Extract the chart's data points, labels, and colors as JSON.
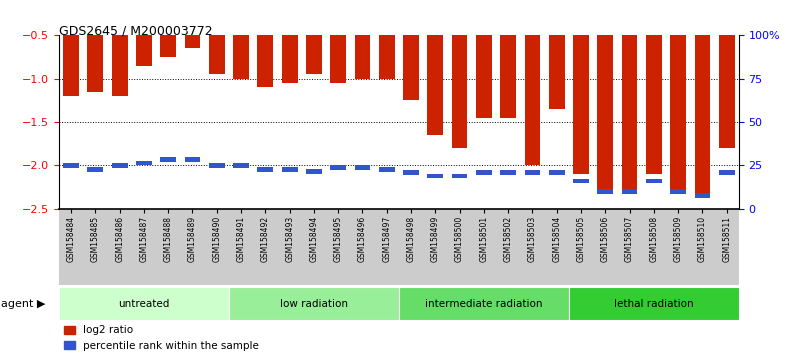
{
  "title": "GDS2645 / M200003772",
  "samples": [
    "GSM158484",
    "GSM158485",
    "GSM158486",
    "GSM158487",
    "GSM158488",
    "GSM158489",
    "GSM158490",
    "GSM158491",
    "GSM158492",
    "GSM158493",
    "GSM158494",
    "GSM158495",
    "GSM158496",
    "GSM158497",
    "GSM158498",
    "GSM158499",
    "GSM158500",
    "GSM158501",
    "GSM158502",
    "GSM158503",
    "GSM158504",
    "GSM158505",
    "GSM158506",
    "GSM158507",
    "GSM158508",
    "GSM158509",
    "GSM158510",
    "GSM158511"
  ],
  "log2_ratio": [
    -1.2,
    -1.15,
    -1.2,
    -0.85,
    -0.75,
    -0.65,
    -0.95,
    -1.0,
    -1.1,
    -1.05,
    -0.95,
    -1.05,
    -1.0,
    -1.0,
    -1.25,
    -1.65,
    -1.8,
    -1.45,
    -1.45,
    -2.0,
    -1.35,
    -2.1,
    -2.3,
    -2.3,
    -2.1,
    -2.3,
    -2.35,
    -1.8
  ],
  "blue_position": [
    -2.0,
    -2.05,
    -2.0,
    -1.97,
    -1.93,
    -1.93,
    -2.0,
    -2.0,
    -2.05,
    -2.05,
    -2.07,
    -2.02,
    -2.02,
    -2.05,
    -2.08,
    -2.12,
    -2.12,
    -2.08,
    -2.08,
    -2.08,
    -2.08,
    -2.18,
    -2.3,
    -2.3,
    -2.18,
    -2.3,
    -2.35,
    -2.08
  ],
  "groups": [
    {
      "label": "untreated",
      "start": 0,
      "end": 7,
      "color": "#ccffcc"
    },
    {
      "label": "low radiation",
      "start": 7,
      "end": 14,
      "color": "#99ee99"
    },
    {
      "label": "intermediate radiation",
      "start": 14,
      "end": 21,
      "color": "#66dd66"
    },
    {
      "label": "lethal radiation",
      "start": 21,
      "end": 28,
      "color": "#33cc33"
    }
  ],
  "bar_color": "#cc2200",
  "blue_color": "#3355cc",
  "ylim": [
    -2.5,
    -0.5
  ],
  "yticks_left": [
    -2.5,
    -2.0,
    -1.5,
    -1.0,
    -0.5
  ],
  "yticks_right": [
    0,
    25,
    50,
    75,
    100
  ],
  "grid_values": [
    -2.0,
    -1.5,
    -1.0
  ],
  "background_color": "#ffffff",
  "gray_tick_bg": "#cccccc"
}
